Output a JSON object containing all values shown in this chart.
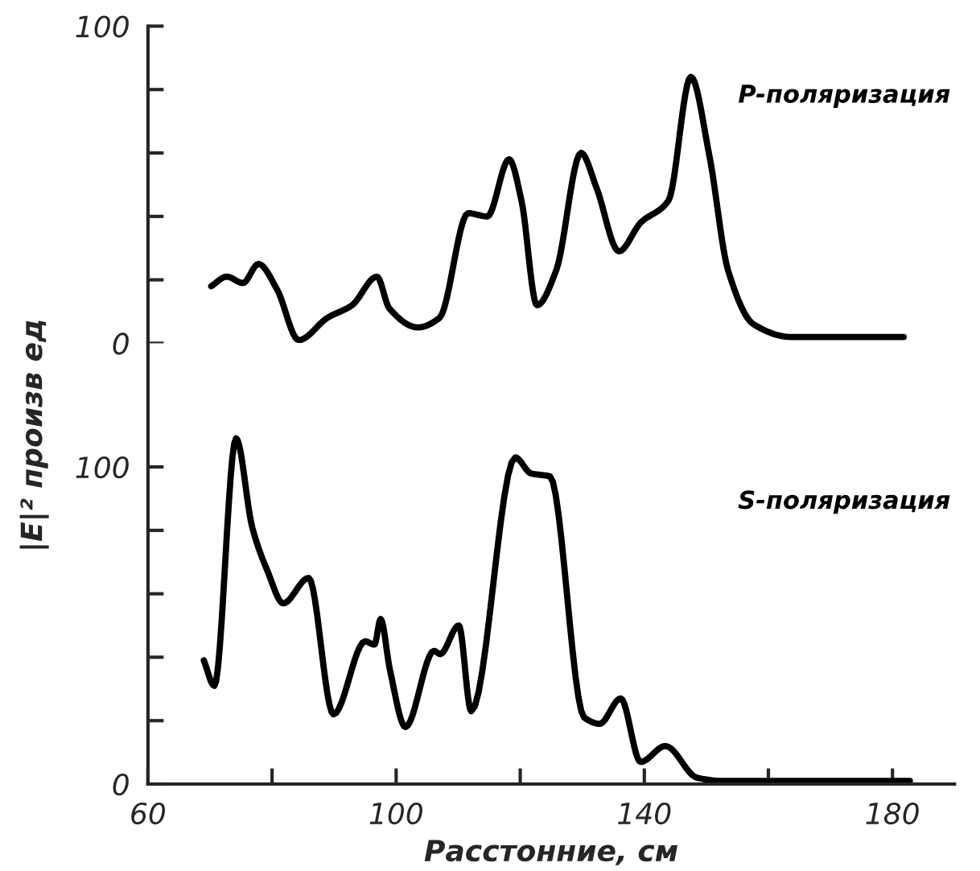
{
  "chart_data": [
    {
      "type": "line",
      "xlim": [
        60,
        190
      ],
      "ylim": [
        0,
        100
      ],
      "tick_labels": "y",
      "yticks": [
        0,
        {
          "value": 20,
          "label": null
        },
        {
          "value": 40,
          "label": null
        },
        {
          "value": 60,
          "label": null
        },
        {
          "value": 80,
          "label": null
        },
        100
      ],
      "series": [
        {
          "name": "P-поляризация",
          "color": "#000000",
          "x": [
            70.2,
            72.7,
            75.3,
            77.8,
            80.8,
            84.3,
            88.9,
            92.9,
            96.9,
            98.9,
            103.5,
            107.0,
            111.6,
            114.7,
            118.2,
            120.2,
            122.7,
            125.8,
            129.8,
            132.3,
            135.9,
            139.4,
            143.9,
            147.5,
            150.5,
            153.5,
            157.6,
            163.6,
            181.8
          ],
          "values": [
            18,
            21,
            19,
            25,
            17,
            1,
            8,
            12,
            21,
            11,
            5,
            8,
            41,
            40,
            58,
            45,
            12,
            23,
            60,
            49,
            29,
            38,
            45,
            84,
            59,
            23,
            6,
            2,
            2
          ]
        }
      ]
    },
    {
      "type": "line",
      "xlim": [
        60,
        190
      ],
      "ylim": [
        0,
        139
      ],
      "xlabel": "Расстонние, см",
      "ylabel": "|E|² произв ед",
      "xticks": [
        60,
        {
          "value": 80,
          "label": null
        },
        100,
        {
          "value": 120,
          "label": null
        },
        140,
        {
          "value": 160,
          "label": null
        },
        180
      ],
      "yticks": [
        0,
        {
          "value": 20,
          "label": null
        },
        {
          "value": 40,
          "label": null
        },
        {
          "value": 60,
          "label": null
        },
        {
          "value": 80,
          "label": null
        },
        100
      ],
      "series": [
        {
          "name": "S-поляризация",
          "color": "#000000",
          "x": [
            69.0,
            70.7,
            74.2,
            76.8,
            79.3,
            81.8,
            85.9,
            89.9,
            95.0,
            96.5,
            97.5,
            99.0,
            101.5,
            106.1,
            107.1,
            110.1,
            112.1,
            119.2,
            121.7,
            124.8,
            130.3,
            132.8,
            136.2,
            139.4,
            143.4,
            148.5,
            152.5,
            182.8
          ],
          "values": [
            39,
            31,
            109,
            81,
            67,
            57,
            65,
            22,
            45,
            44,
            52,
            36,
            18,
            42,
            41,
            50,
            23,
            103,
            98,
            97,
            21,
            19,
            27,
            7,
            12,
            2,
            1,
            1
          ]
        }
      ]
    }
  ]
}
